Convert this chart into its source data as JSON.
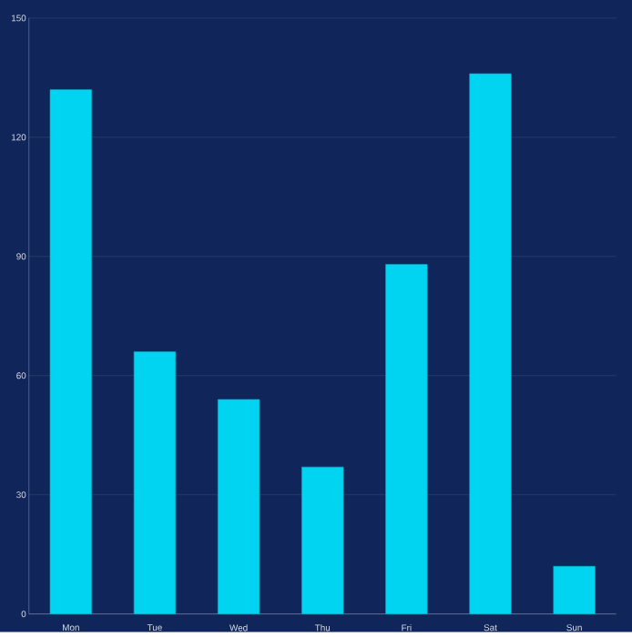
{
  "chart_data": {
    "type": "bar",
    "categories": [
      "Mon",
      "Tue",
      "Wed",
      "Thu",
      "Fri",
      "Sat",
      "Sun"
    ],
    "values": [
      132,
      66,
      54,
      37,
      88,
      136,
      12
    ],
    "color": "#00d4f0",
    "ylim": [
      0,
      150
    ],
    "yticks": [
      0,
      30,
      60,
      90,
      120,
      150
    ],
    "grid": "y"
  }
}
